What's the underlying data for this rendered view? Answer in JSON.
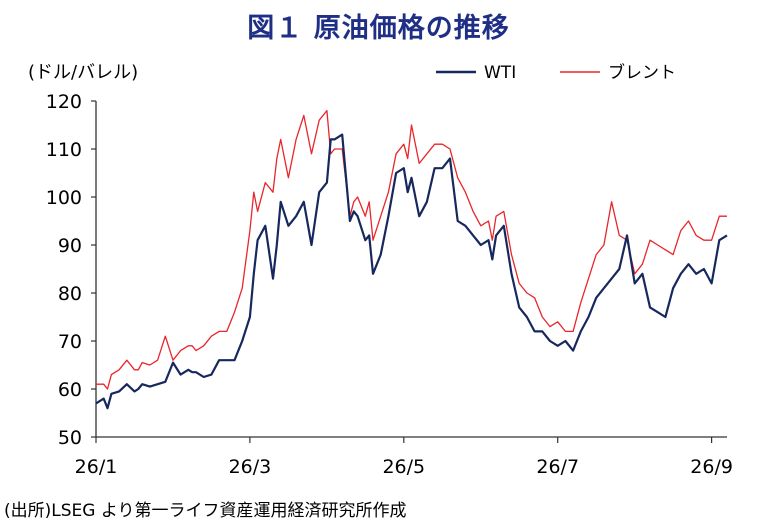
{
  "header": {
    "title": "図１ 原油価格の推移",
    "unit": "(ドル/バレル)"
  },
  "footer": {
    "source": "(出所)LSEG より第一ライフ資産運用経済研究所作成"
  },
  "chart_data": {
    "type": "line",
    "title": "図１ 原油価格の推移",
    "ylabel": "(ドル/バレル)",
    "ylim": [
      50,
      120
    ],
    "yticks": [
      50,
      60,
      70,
      80,
      90,
      100,
      110,
      120
    ],
    "xlim": [
      0,
      8.2
    ],
    "xticks": [
      {
        "pos": 0,
        "label": "26/1"
      },
      {
        "pos": 2,
        "label": "26/3"
      },
      {
        "pos": 4,
        "label": "26/5"
      },
      {
        "pos": 6,
        "label": "26/7"
      },
      {
        "pos": 8,
        "label": "26/9"
      }
    ],
    "grid": false,
    "legend": "top-right",
    "series": [
      {
        "name": "WTI",
        "color": "#16285e",
        "x": [
          0.0,
          0.1,
          0.15,
          0.2,
          0.3,
          0.4,
          0.5,
          0.55,
          0.6,
          0.7,
          0.8,
          0.9,
          1.0,
          1.1,
          1.2,
          1.25,
          1.3,
          1.4,
          1.5,
          1.6,
          1.7,
          1.8,
          1.9,
          2.0,
          2.05,
          2.1,
          2.2,
          2.3,
          2.35,
          2.4,
          2.5,
          2.6,
          2.7,
          2.8,
          2.9,
          3.0,
          3.05,
          3.1,
          3.2,
          3.3,
          3.35,
          3.4,
          3.5,
          3.55,
          3.6,
          3.7,
          3.8,
          3.9,
          4.0,
          4.05,
          4.1,
          4.2,
          4.3,
          4.4,
          4.5,
          4.6,
          4.7,
          4.8,
          4.9,
          5.0,
          5.1,
          5.15,
          5.2,
          5.3,
          5.4,
          5.5,
          5.6,
          5.7,
          5.8,
          5.9,
          6.0,
          6.1,
          6.2,
          6.3,
          6.4,
          6.5,
          6.6,
          6.7,
          6.8,
          6.9,
          7.0,
          7.1,
          7.2,
          7.3,
          7.4,
          7.5,
          7.6,
          7.7,
          7.8,
          7.9,
          8.0,
          8.1,
          8.2
        ],
        "y": [
          57,
          58,
          56,
          59,
          59.5,
          61,
          59.5,
          60,
          61,
          60.5,
          61,
          61.5,
          65.5,
          63,
          64,
          63.5,
          63.5,
          62.5,
          63,
          66,
          66,
          66,
          70,
          75,
          84,
          91,
          94,
          83,
          90,
          99,
          94,
          96,
          99,
          90,
          101,
          103,
          112,
          112,
          113,
          95,
          97,
          96,
          91,
          92,
          84,
          88,
          96,
          105,
          106,
          101,
          104,
          96,
          99,
          106,
          106,
          108,
          95,
          94,
          92,
          90,
          91,
          87,
          92,
          94,
          84,
          77,
          75,
          72,
          72,
          70,
          69,
          70,
          68,
          72,
          75,
          79,
          81,
          83,
          85,
          92,
          82,
          84,
          77,
          76,
          75,
          81,
          84,
          86,
          84,
          85,
          82,
          91,
          92
        ]
      },
      {
        "name": "ブレント",
        "color": "#e8262b",
        "x": [
          0.0,
          0.1,
          0.15,
          0.2,
          0.3,
          0.4,
          0.5,
          0.55,
          0.6,
          0.7,
          0.8,
          0.9,
          1.0,
          1.1,
          1.2,
          1.25,
          1.3,
          1.4,
          1.5,
          1.6,
          1.7,
          1.8,
          1.9,
          2.0,
          2.05,
          2.1,
          2.2,
          2.3,
          2.35,
          2.4,
          2.5,
          2.6,
          2.7,
          2.8,
          2.9,
          3.0,
          3.05,
          3.1,
          3.2,
          3.3,
          3.35,
          3.4,
          3.5,
          3.55,
          3.6,
          3.7,
          3.8,
          3.9,
          4.0,
          4.05,
          4.1,
          4.2,
          4.3,
          4.4,
          4.5,
          4.6,
          4.7,
          4.8,
          4.9,
          5.0,
          5.1,
          5.15,
          5.2,
          5.3,
          5.4,
          5.5,
          5.6,
          5.7,
          5.8,
          5.9,
          6.0,
          6.1,
          6.2,
          6.3,
          6.4,
          6.5,
          6.6,
          6.7,
          6.8,
          6.9,
          7.0,
          7.1,
          7.2,
          7.3,
          7.4,
          7.5,
          7.6,
          7.7,
          7.8,
          7.9,
          8.0,
          8.1,
          8.2
        ],
        "y": [
          61,
          61,
          60,
          63,
          64,
          66,
          64,
          64,
          65.5,
          65,
          66,
          71,
          66,
          68,
          69,
          69,
          68,
          69,
          71,
          72,
          72,
          76,
          81,
          93,
          101,
          97,
          103,
          101,
          108,
          112,
          104,
          112,
          117,
          109,
          116,
          118,
          109,
          110,
          110,
          96,
          99,
          100,
          96,
          99,
          91,
          96,
          101,
          109,
          111,
          108,
          115,
          107,
          109,
          111,
          111,
          110,
          104,
          101,
          97,
          94,
          95,
          91,
          96,
          97,
          88,
          82,
          80,
          79,
          75,
          73,
          74,
          72,
          72,
          78,
          83,
          88,
          90,
          99,
          92,
          91,
          84,
          86,
          91,
          90,
          89,
          88,
          93,
          95,
          92,
          91,
          91,
          96,
          96
        ]
      }
    ]
  }
}
